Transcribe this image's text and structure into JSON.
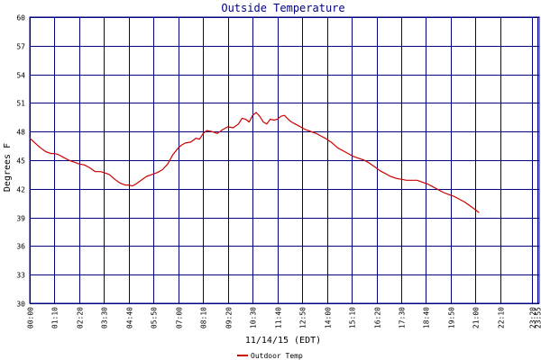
{
  "chart_data": {
    "type": "line",
    "title": "Outside Temperature",
    "xlabel": "11/14/15 (EDT)",
    "ylabel": "Degrees F",
    "ylim": [
      30,
      60
    ],
    "yticks": [
      30,
      33,
      36,
      39,
      42,
      45,
      48,
      51,
      54,
      57,
      60
    ],
    "xlim": [
      0,
      1440
    ],
    "xticks": [
      {
        "min": 0,
        "label": "00:00"
      },
      {
        "min": 70,
        "label": "01:10"
      },
      {
        "min": 140,
        "label": "02:20"
      },
      {
        "min": 210,
        "label": "03:30"
      },
      {
        "min": 280,
        "label": "04:40"
      },
      {
        "min": 350,
        "label": "05:50"
      },
      {
        "min": 420,
        "label": "07:00"
      },
      {
        "min": 490,
        "label": "08:10"
      },
      {
        "min": 560,
        "label": "09:20"
      },
      {
        "min": 630,
        "label": "10:30"
      },
      {
        "min": 700,
        "label": "11:40"
      },
      {
        "min": 770,
        "label": "12:50"
      },
      {
        "min": 840,
        "label": "14:00"
      },
      {
        "min": 910,
        "label": "15:10"
      },
      {
        "min": 980,
        "label": "16:20"
      },
      {
        "min": 1050,
        "label": "17:30"
      },
      {
        "min": 1120,
        "label": "18:40"
      },
      {
        "min": 1190,
        "label": "19:50"
      },
      {
        "min": 1260,
        "label": "21:00"
      },
      {
        "min": 1330,
        "label": "22:10"
      },
      {
        "min": 1420,
        "label": "23:20"
      },
      {
        "min": 1435,
        "label": "23:55"
      }
    ],
    "grid": true,
    "legend": "bottom-center",
    "series": [
      {
        "name": "Outdoor Temp",
        "color": "#cc0000",
        "points": [
          [
            0,
            47.3
          ],
          [
            15,
            46.8
          ],
          [
            30,
            46.3
          ],
          [
            45,
            45.9
          ],
          [
            60,
            45.7
          ],
          [
            70,
            45.7
          ],
          [
            80,
            45.6
          ],
          [
            95,
            45.3
          ],
          [
            110,
            45.0
          ],
          [
            125,
            44.8
          ],
          [
            140,
            44.6
          ],
          [
            155,
            44.5
          ],
          [
            170,
            44.2
          ],
          [
            185,
            43.8
          ],
          [
            200,
            43.8
          ],
          [
            210,
            43.7
          ],
          [
            225,
            43.5
          ],
          [
            240,
            43.0
          ],
          [
            255,
            42.6
          ],
          [
            270,
            42.4
          ],
          [
            280,
            42.4
          ],
          [
            290,
            42.3
          ],
          [
            300,
            42.5
          ],
          [
            315,
            42.9
          ],
          [
            330,
            43.3
          ],
          [
            345,
            43.5
          ],
          [
            360,
            43.7
          ],
          [
            375,
            44.0
          ],
          [
            390,
            44.6
          ],
          [
            405,
            45.6
          ],
          [
            420,
            46.3
          ],
          [
            430,
            46.6
          ],
          [
            440,
            46.8
          ],
          [
            455,
            46.9
          ],
          [
            470,
            47.3
          ],
          [
            480,
            47.2
          ],
          [
            490,
            47.8
          ],
          [
            500,
            48.1
          ],
          [
            515,
            48.0
          ],
          [
            530,
            47.8
          ],
          [
            545,
            48.2
          ],
          [
            560,
            48.5
          ],
          [
            575,
            48.4
          ],
          [
            590,
            48.8
          ],
          [
            600,
            49.4
          ],
          [
            610,
            49.3
          ],
          [
            620,
            49.0
          ],
          [
            630,
            49.7
          ],
          [
            640,
            50.0
          ],
          [
            650,
            49.6
          ],
          [
            660,
            49.0
          ],
          [
            670,
            48.8
          ],
          [
            680,
            49.3
          ],
          [
            690,
            49.2
          ],
          [
            700,
            49.3
          ],
          [
            710,
            49.6
          ],
          [
            720,
            49.7
          ],
          [
            730,
            49.3
          ],
          [
            740,
            49.0
          ],
          [
            750,
            48.8
          ],
          [
            760,
            48.6
          ],
          [
            770,
            48.4
          ],
          [
            780,
            48.2
          ],
          [
            795,
            48.0
          ],
          [
            810,
            47.8
          ],
          [
            825,
            47.5
          ],
          [
            840,
            47.2
          ],
          [
            855,
            46.8
          ],
          [
            870,
            46.3
          ],
          [
            885,
            46.0
          ],
          [
            900,
            45.7
          ],
          [
            915,
            45.4
          ],
          [
            930,
            45.2
          ],
          [
            945,
            45.0
          ],
          [
            960,
            44.7
          ],
          [
            975,
            44.3
          ],
          [
            990,
            43.9
          ],
          [
            1005,
            43.6
          ],
          [
            1020,
            43.3
          ],
          [
            1035,
            43.1
          ],
          [
            1050,
            43.0
          ],
          [
            1065,
            42.9
          ],
          [
            1080,
            42.9
          ],
          [
            1095,
            42.9
          ],
          [
            1110,
            42.7
          ],
          [
            1125,
            42.5
          ],
          [
            1140,
            42.2
          ],
          [
            1155,
            41.9
          ],
          [
            1170,
            41.6
          ],
          [
            1185,
            41.4
          ],
          [
            1200,
            41.2
          ],
          [
            1215,
            40.9
          ],
          [
            1230,
            40.6
          ],
          [
            1245,
            40.2
          ],
          [
            1260,
            39.8
          ],
          [
            1270,
            39.5
          ]
        ]
      }
    ]
  }
}
